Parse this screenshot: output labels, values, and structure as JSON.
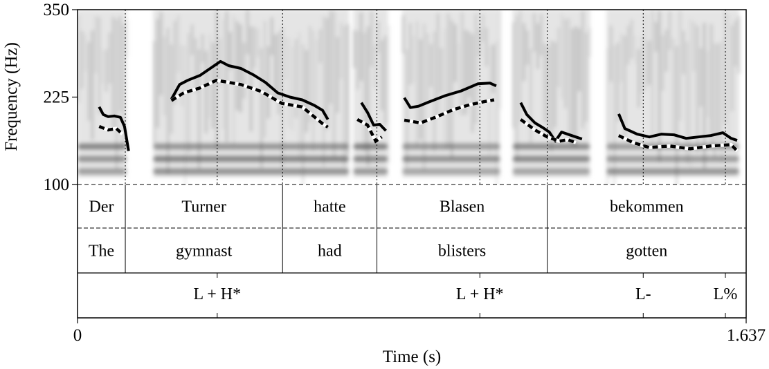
{
  "chart_data": {
    "type": "line",
    "subtype": "spectrogram-with-pitch-tracks",
    "xlabel": "Time (s)",
    "ylabel": "Frequency (Hz)",
    "xlim": [
      0,
      1.637
    ],
    "ylim": [
      100,
      350
    ],
    "x_tick_labels": [
      "0",
      "1.637"
    ],
    "y_ticks": [
      100,
      225,
      350
    ],
    "y_tick_labels": [
      "100",
      "225",
      "350"
    ],
    "colors": {
      "solid": "#000000",
      "dashed": "#000000",
      "dash_highlight": "#ffffff",
      "spectrogram": "#5a5a5a"
    },
    "series": [
      {
        "style": "solid",
        "segments": [
          [
            [
              0.053,
              211
            ],
            [
              0.063,
              200
            ],
            [
              0.075,
              197
            ],
            [
              0.09,
              198
            ],
            [
              0.105,
              196
            ],
            [
              0.115,
              183
            ],
            [
              0.125,
              148
            ]
          ],
          [
            [
              0.23,
              222
            ],
            [
              0.25,
              243
            ],
            [
              0.27,
              249
            ],
            [
              0.3,
              256
            ],
            [
              0.33,
              268
            ],
            [
              0.35,
              276
            ],
            [
              0.37,
              270
            ],
            [
              0.4,
              266
            ],
            [
              0.43,
              257
            ],
            [
              0.46,
              246
            ],
            [
              0.49,
              231
            ],
            [
              0.52,
              225
            ],
            [
              0.55,
              221
            ],
            [
              0.58,
              213
            ],
            [
              0.6,
              206
            ],
            [
              0.613,
              193
            ]
          ],
          [
            [
              0.695,
              217
            ],
            [
              0.71,
              203
            ],
            [
              0.725,
              185
            ],
            [
              0.74,
              186
            ],
            [
              0.755,
              177
            ]
          ],
          [
            [
              0.8,
              224
            ],
            [
              0.815,
              210
            ],
            [
              0.835,
              212
            ],
            [
              0.86,
              218
            ],
            [
              0.9,
              227
            ],
            [
              0.94,
              234
            ],
            [
              0.98,
              244
            ],
            [
              1.01,
              245
            ],
            [
              1.025,
              241
            ]
          ],
          [
            [
              1.085,
              217
            ],
            [
              1.1,
              200
            ],
            [
              1.12,
              188
            ],
            [
              1.14,
              181
            ],
            [
              1.155,
              175
            ],
            [
              1.17,
              162
            ],
            [
              1.185,
              175
            ],
            [
              1.21,
              170
            ],
            [
              1.235,
              165
            ]
          ],
          [
            [
              1.325,
              201
            ],
            [
              1.34,
              180
            ],
            [
              1.37,
              172
            ],
            [
              1.4,
              168
            ],
            [
              1.43,
              172
            ],
            [
              1.46,
              171
            ],
            [
              1.49,
              166
            ],
            [
              1.52,
              168
            ],
            [
              1.55,
              170
            ],
            [
              1.58,
              174
            ],
            [
              1.6,
              166
            ],
            [
              1.615,
              163
            ]
          ]
        ]
      },
      {
        "style": "dashed",
        "segments": [
          [
            [
              0.053,
              183
            ],
            [
              0.075,
              178
            ],
            [
              0.095,
              180
            ],
            [
              0.11,
              172
            ]
          ],
          [
            [
              0.23,
              220
            ],
            [
              0.26,
              231
            ],
            [
              0.3,
              238
            ],
            [
              0.34,
              249
            ],
            [
              0.4,
              243
            ],
            [
              0.45,
              233
            ],
            [
              0.5,
              216
            ],
            [
              0.55,
              211
            ],
            [
              0.6,
              187
            ],
            [
              0.613,
              182
            ]
          ],
          [
            [
              0.685,
              193
            ],
            [
              0.71,
              185
            ],
            [
              0.73,
              162
            ],
            [
              0.745,
              168
            ]
          ],
          [
            [
              0.8,
              192
            ],
            [
              0.84,
              188
            ],
            [
              0.88,
              197
            ],
            [
              0.92,
              207
            ],
            [
              0.96,
              214
            ],
            [
              1.0,
              219
            ],
            [
              1.02,
              221
            ]
          ],
          [
            [
              1.085,
              193
            ],
            [
              1.12,
              178
            ],
            [
              1.15,
              168
            ],
            [
              1.18,
              162
            ],
            [
              1.2,
              164
            ],
            [
              1.22,
              160
            ]
          ],
          [
            [
              1.325,
              170
            ],
            [
              1.36,
              160
            ],
            [
              1.4,
              153
            ],
            [
              1.45,
              155
            ],
            [
              1.5,
              151
            ],
            [
              1.55,
              155
            ],
            [
              1.6,
              157
            ],
            [
              1.615,
              148
            ]
          ]
        ]
      }
    ],
    "tiers": [
      {
        "name": "german",
        "type": "interval",
        "labels": [
          "Der",
          "Turner",
          "hatte",
          "Blasen",
          "bekommen"
        ],
        "boundaries": [
          0.117,
          0.502,
          0.733,
          1.15
        ]
      },
      {
        "name": "english",
        "type": "interval",
        "labels": [
          "The",
          "gymnast",
          "had",
          "blisters",
          "gotten"
        ],
        "boundaries": [
          0.117,
          0.502,
          0.733,
          1.15
        ]
      },
      {
        "name": "tones",
        "type": "point",
        "labels": [
          "L + H*",
          "L + H*",
          "L-",
          "L%"
        ],
        "times": [
          0.342,
          0.985,
          1.385,
          1.652
        ]
      }
    ]
  }
}
